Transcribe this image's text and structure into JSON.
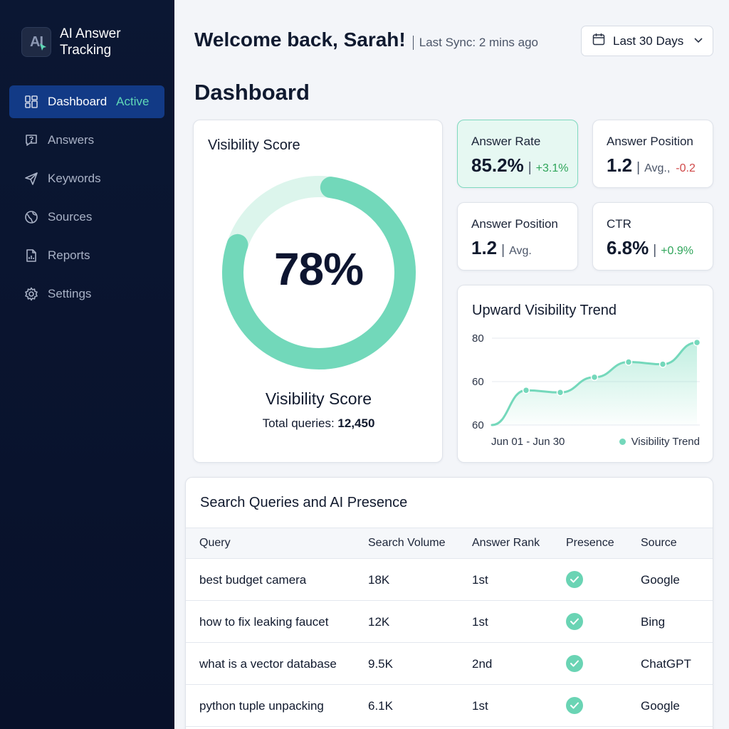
{
  "sidebar": {
    "logo_text": "AI",
    "brand_name_line1": "AI Answer",
    "brand_name_line2": "Tracking",
    "items": [
      {
        "label": "Dashboard",
        "badge": "Active",
        "icon": "dashboard-icon"
      },
      {
        "label": "Answers",
        "icon": "question-icon"
      },
      {
        "label": "Keywords",
        "icon": "send-icon"
      },
      {
        "label": "Sources",
        "icon": "globe-icon"
      },
      {
        "label": "Reports",
        "icon": "report-icon"
      },
      {
        "label": "Settings",
        "icon": "gear-icon"
      }
    ]
  },
  "header": {
    "welcome": "Welcome back, Sarah!",
    "sync": "Last Sync: 2 mins ago",
    "date_range": "Last 30 Days",
    "page_title": "Dashboard"
  },
  "visibility": {
    "title": "Visibility Score",
    "value": "78%",
    "fraction": 0.78,
    "subtitle": "Visibility Score",
    "total_label": "Total queries:",
    "total_value": "12,450"
  },
  "metrics": [
    {
      "label": "Answer Rate",
      "value": "85.2%",
      "change": "+3.1%"
    },
    {
      "label": "Answer Position",
      "value": "1.2",
      "note": "Avg.,",
      "change": "-0.2"
    },
    {
      "label": "Answer Position",
      "value": "1.2",
      "note": "Avg."
    },
    {
      "label": "CTR",
      "value": "6.8%",
      "change": "+0.9%"
    }
  ],
  "trend": {
    "title": "Upward Visibility Trend",
    "range_label": "Jun 01 - Jun 30",
    "legend": "Visibility Trend"
  },
  "chart_data": {
    "type": "line",
    "title": "Upward Visibility Trend",
    "ytick_labels": [
      "80",
      "60",
      "60"
    ],
    "xlabel": "Jun 01 - Jun 30",
    "series": [
      {
        "name": "Visibility Trend",
        "values": [
          40,
          56,
          55,
          62,
          69,
          68,
          78
        ]
      }
    ],
    "ylim": [
      40,
      80
    ],
    "grid": true,
    "legend_position": "bottom-right"
  },
  "table": {
    "title": "Search Queries and AI Presence",
    "columns": [
      "Query",
      "Search Volume",
      "Answer Rank",
      "Presence",
      "Source"
    ],
    "rows": [
      {
        "query": "best budget camera",
        "volume": "18K",
        "rank": "1st",
        "source": "Google"
      },
      {
        "query": "how to fix leaking faucet",
        "volume": "12K",
        "rank": "1st",
        "source": "Bing"
      },
      {
        "query": "what is a vector database",
        "volume": "9.5K",
        "rank": "2nd",
        "source": "ChatGPT"
      },
      {
        "query": "python tuple unpacking",
        "volume": "6.1K",
        "rank": "1st",
        "source": "Google"
      }
    ]
  },
  "colors": {
    "accent": "#6ad4b4",
    "sidebar": "#0a1530",
    "active_nav": "#123a86",
    "positive": "#2fa55a",
    "negative": "#d04848"
  }
}
